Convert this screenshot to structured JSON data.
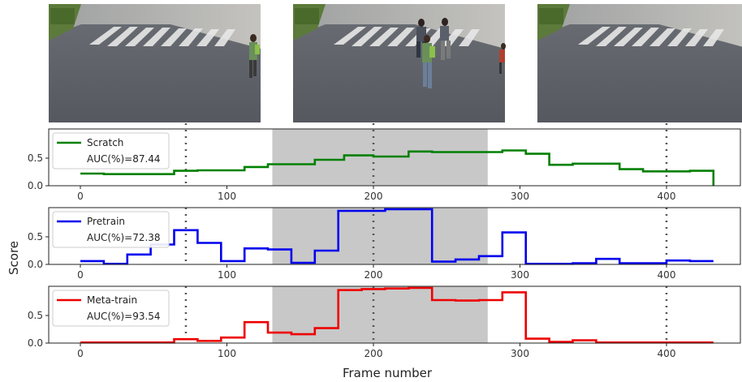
{
  "figure": {
    "xlabel": "Frame number",
    "ylabel": "Score"
  },
  "frames": [
    {
      "id": "frame-1",
      "description_icon": "crosswalk-scene-icon"
    },
    {
      "id": "frame-2",
      "description_icon": "crosswalk-fight-scene-icon"
    },
    {
      "id": "frame-3",
      "description_icon": "crosswalk-empty-scene-icon"
    }
  ],
  "colors": {
    "scratch": "#008000",
    "pretrain": "#0000ee",
    "metatrain": "#ee0000",
    "anomaly_band": "#c8c8c8",
    "marker_line": "#555555"
  },
  "chart_data": [
    {
      "type": "line",
      "panel": "scratch",
      "legend": {
        "name": "Scratch",
        "auc": "AUC(%)=87.44"
      },
      "xlim": [
        -10,
        450
      ],
      "ylim": [
        0,
        1
      ],
      "xticks": [
        0,
        100,
        200,
        300,
        400
      ],
      "yticks": [
        "0.0",
        "0.5"
      ],
      "anomaly_region": [
        131,
        278
      ],
      "markers": [
        72,
        200,
        400
      ],
      "x": [
        0,
        16,
        16,
        64,
        64,
        80,
        80,
        112,
        112,
        128,
        128,
        160,
        160,
        180,
        180,
        200,
        200,
        224,
        224,
        240,
        240,
        288,
        288,
        304,
        304,
        320,
        320,
        336,
        336,
        368,
        368,
        384,
        384,
        416,
        416,
        432,
        432
      ],
      "y": [
        0.22,
        0.22,
        0.21,
        0.21,
        0.27,
        0.27,
        0.28,
        0.28,
        0.34,
        0.34,
        0.39,
        0.39,
        0.47,
        0.47,
        0.55,
        0.55,
        0.53,
        0.53,
        0.62,
        0.62,
        0.61,
        0.61,
        0.64,
        0.64,
        0.58,
        0.58,
        0.38,
        0.38,
        0.4,
        0.4,
        0.3,
        0.3,
        0.26,
        0.26,
        0.27,
        0.27,
        0.0
      ]
    },
    {
      "type": "line",
      "panel": "pretrain",
      "legend": {
        "name": "Pretrain",
        "auc": "AUC(%)=72.38"
      },
      "xlim": [
        -10,
        450
      ],
      "ylim": [
        0,
        1
      ],
      "xticks": [
        0,
        100,
        200,
        300,
        400
      ],
      "yticks": [
        "0.0",
        "0.5"
      ],
      "anomaly_region": [
        131,
        278
      ],
      "markers": [
        72,
        200,
        400
      ],
      "x": [
        0,
        8,
        8,
        16,
        16,
        32,
        32,
        48,
        48,
        64,
        64,
        80,
        80,
        96,
        96,
        112,
        112,
        128,
        128,
        144,
        144,
        160,
        160,
        176,
        176,
        192,
        192,
        208,
        208,
        224,
        224,
        240,
        240,
        256,
        256,
        272,
        272,
        288,
        288,
        304,
        304,
        320,
        320,
        336,
        336,
        352,
        352,
        368,
        368,
        384,
        384,
        400,
        400,
        416,
        416,
        432,
        432
      ],
      "y": [
        0.06,
        0.06,
        0.06,
        0.06,
        0.01,
        0.01,
        0.18,
        0.18,
        0.36,
        0.36,
        0.62,
        0.62,
        0.39,
        0.39,
        0.06,
        0.06,
        0.29,
        0.29,
        0.27,
        0.27,
        0.03,
        0.03,
        0.25,
        0.25,
        0.97,
        0.97,
        0.97,
        0.97,
        1.0,
        1.0,
        1.0,
        1.0,
        0.05,
        0.05,
        0.09,
        0.09,
        0.15,
        0.15,
        0.58,
        0.58,
        0.01,
        0.01,
        0.01,
        0.01,
        0.02,
        0.02,
        0.1,
        0.1,
        0.02,
        0.02,
        0.02,
        0.02,
        0.07,
        0.07,
        0.06,
        0.06,
        0.06
      ]
    },
    {
      "type": "line",
      "panel": "metatrain",
      "legend": {
        "name": "Meta-train",
        "auc": "AUC(%)=93.54"
      },
      "xlim": [
        -10,
        450
      ],
      "ylim": [
        0,
        1
      ],
      "xticks": [
        0,
        100,
        200,
        300,
        400
      ],
      "yticks": [
        "0.0",
        "0.5"
      ],
      "anomaly_region": [
        131,
        278
      ],
      "markers": [
        72,
        200,
        400
      ],
      "x": [
        0,
        16,
        16,
        32,
        32,
        48,
        48,
        64,
        64,
        80,
        80,
        96,
        96,
        112,
        112,
        128,
        128,
        144,
        144,
        160,
        160,
        176,
        176,
        192,
        192,
        208,
        208,
        224,
        224,
        240,
        240,
        256,
        256,
        272,
        272,
        288,
        288,
        304,
        304,
        320,
        320,
        336,
        336,
        352,
        352,
        368,
        368,
        384,
        384,
        400,
        400,
        416,
        416,
        432
      ],
      "y": [
        0.01,
        0.01,
        0.01,
        0.01,
        0.01,
        0.01,
        0.01,
        0.01,
        0.07,
        0.07,
        0.04,
        0.04,
        0.1,
        0.1,
        0.38,
        0.38,
        0.19,
        0.19,
        0.16,
        0.16,
        0.27,
        0.27,
        0.96,
        0.96,
        0.98,
        0.98,
        0.99,
        0.99,
        1.0,
        1.0,
        0.78,
        0.78,
        0.77,
        0.77,
        0.78,
        0.78,
        0.92,
        0.92,
        0.08,
        0.08,
        0.02,
        0.02,
        0.05,
        0.05,
        0.01,
        0.01,
        0.01,
        0.01,
        0.01,
        0.01,
        0.01,
        0.01,
        0.01,
        0.01
      ]
    }
  ]
}
